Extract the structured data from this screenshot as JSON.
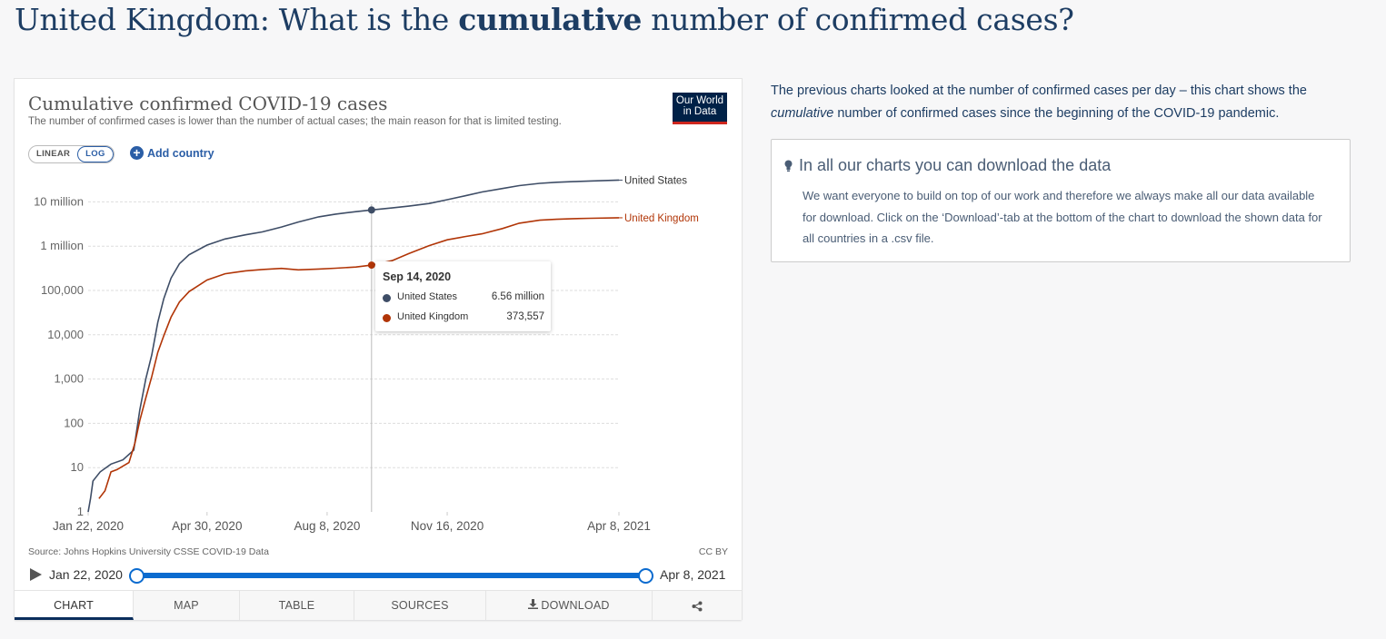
{
  "page": {
    "title_prefix": "United Kingdom: What is the ",
    "title_bold": "cumulative",
    "title_suffix": " number of confirmed cases?"
  },
  "chart": {
    "title": "Cumulative confirmed COVID-19 cases",
    "subtitle": "The number of confirmed cases is lower than the number of actual cases; the main reason for that is limited testing.",
    "logo_line1": "Our World",
    "logo_line2": "in Data",
    "scale_linear": "LINEAR",
    "scale_log": "LOG",
    "add_country": "Add country",
    "source": "Source: Johns Hopkins University CSSE COVID-19 Data",
    "license": "CC BY"
  },
  "tooltip": {
    "date": "Sep 14, 2020",
    "rows": [
      {
        "name": "United States",
        "value": "6.56 million",
        "color": "#3e4d66"
      },
      {
        "name": "United Kingdom",
        "value": "373,557",
        "color": "#b13507"
      }
    ]
  },
  "timeline": {
    "start": "Jan 22, 2020",
    "end": "Apr 8, 2021"
  },
  "tabs": [
    {
      "label": "CHART",
      "active": true
    },
    {
      "label": "MAP",
      "active": false
    },
    {
      "label": "TABLE",
      "active": false
    },
    {
      "label": "SOURCES",
      "active": false
    },
    {
      "label": "DOWNLOAD",
      "active": false
    },
    {
      "label": "",
      "active": false
    }
  ],
  "side": {
    "intro_before": "The previous charts looked at the number of confirmed cases per day – this chart shows the ",
    "intro_italic": "cumulative",
    "intro_after": " number of confirmed cases since the beginning of the COVID-19 pandemic.",
    "info_title": "In all our charts you can download the data",
    "info_body": "We want everyone to build on top of our work and therefore we always make all our data available for download. Click on the ‘Download’-tab at the bottom of the chart to download the shown data for all countries in a .csv file."
  },
  "chart_data": {
    "type": "line",
    "title": "Cumulative confirmed COVID-19 cases",
    "subtitle": "The number of confirmed cases is lower than the number of actual cases; the main reason for that is limited testing.",
    "yscale": "log",
    "ylim": [
      1,
      40000000
    ],
    "xlim": [
      "2020-01-22",
      "2021-04-08"
    ],
    "x_ticks": [
      "Jan 22, 2020",
      "Apr 30, 2020",
      "Aug 8, 2020",
      "Nov 16, 2020",
      "Apr 8, 2021"
    ],
    "x_tick_dates": [
      "2020-01-22",
      "2020-04-30",
      "2020-08-08",
      "2020-11-16",
      "2021-04-08"
    ],
    "y_ticks": [
      {
        "label": "1",
        "value": 1
      },
      {
        "label": "10",
        "value": 10
      },
      {
        "label": "100",
        "value": 100
      },
      {
        "label": "1,000",
        "value": 1000
      },
      {
        "label": "10,000",
        "value": 10000
      },
      {
        "label": "100,000",
        "value": 100000
      },
      {
        "label": "1 million",
        "value": 1000000
      },
      {
        "label": "10 million",
        "value": 10000000
      }
    ],
    "grid": true,
    "legend": "line-end labels",
    "hover_date": "2020-09-14",
    "series": [
      {
        "name": "United States",
        "color": "#3e4d66",
        "points": [
          [
            "2020-01-22",
            1
          ],
          [
            "2020-01-24",
            2
          ],
          [
            "2020-01-26",
            5
          ],
          [
            "2020-02-01",
            8
          ],
          [
            "2020-02-10",
            12
          ],
          [
            "2020-02-20",
            15
          ],
          [
            "2020-02-29",
            25
          ],
          [
            "2020-03-05",
            200
          ],
          [
            "2020-03-10",
            1000
          ],
          [
            "2020-03-15",
            3500
          ],
          [
            "2020-03-20",
            19000
          ],
          [
            "2020-03-25",
            65000
          ],
          [
            "2020-03-31",
            190000
          ],
          [
            "2020-04-07",
            400000
          ],
          [
            "2020-04-15",
            640000
          ],
          [
            "2020-04-30",
            1060000
          ],
          [
            "2020-05-15",
            1450000
          ],
          [
            "2020-06-01",
            1800000
          ],
          [
            "2020-06-15",
            2100000
          ],
          [
            "2020-07-01",
            2700000
          ],
          [
            "2020-07-15",
            3500000
          ],
          [
            "2020-08-01",
            4600000
          ],
          [
            "2020-08-15",
            5300000
          ],
          [
            "2020-09-01",
            6000000
          ],
          [
            "2020-09-14",
            6560000
          ],
          [
            "2020-10-01",
            7300000
          ],
          [
            "2020-10-15",
            8000000
          ],
          [
            "2020-11-01",
            9200000
          ],
          [
            "2020-11-16",
            11200000
          ],
          [
            "2020-12-01",
            13700000
          ],
          [
            "2020-12-15",
            16700000
          ],
          [
            "2021-01-01",
            20000000
          ],
          [
            "2021-01-15",
            23300000
          ],
          [
            "2021-02-01",
            26200000
          ],
          [
            "2021-02-15",
            27700000
          ],
          [
            "2021-03-01",
            28700000
          ],
          [
            "2021-03-15",
            29600000
          ],
          [
            "2021-04-08",
            31000000
          ]
        ]
      },
      {
        "name": "United Kingdom",
        "color": "#b13507",
        "points": [
          [
            "2020-01-31",
            2
          ],
          [
            "2020-02-05",
            3
          ],
          [
            "2020-02-10",
            8
          ],
          [
            "2020-02-15",
            9
          ],
          [
            "2020-02-25",
            13
          ],
          [
            "2020-03-01",
            36
          ],
          [
            "2020-03-05",
            115
          ],
          [
            "2020-03-10",
            373
          ],
          [
            "2020-03-15",
            1140
          ],
          [
            "2020-03-20",
            4000
          ],
          [
            "2020-03-25",
            9500
          ],
          [
            "2020-03-31",
            25000
          ],
          [
            "2020-04-07",
            55000
          ],
          [
            "2020-04-15",
            94000
          ],
          [
            "2020-04-30",
            172000
          ],
          [
            "2020-05-15",
            238000
          ],
          [
            "2020-06-01",
            277000
          ],
          [
            "2020-06-15",
            297000
          ],
          [
            "2020-07-01",
            314000
          ],
          [
            "2020-07-15",
            292000
          ],
          [
            "2020-08-01",
            304000
          ],
          [
            "2020-08-15",
            318000
          ],
          [
            "2020-09-01",
            338000
          ],
          [
            "2020-09-14",
            373557
          ],
          [
            "2020-10-01",
            470000
          ],
          [
            "2020-10-15",
            680000
          ],
          [
            "2020-11-01",
            1030000
          ],
          [
            "2020-11-16",
            1390000
          ],
          [
            "2020-12-01",
            1650000
          ],
          [
            "2020-12-15",
            1900000
          ],
          [
            "2021-01-01",
            2500000
          ],
          [
            "2021-01-15",
            3300000
          ],
          [
            "2021-02-01",
            3850000
          ],
          [
            "2021-02-15",
            4050000
          ],
          [
            "2021-03-01",
            4180000
          ],
          [
            "2021-03-15",
            4260000
          ],
          [
            "2021-04-08",
            4370000
          ]
        ]
      }
    ]
  }
}
